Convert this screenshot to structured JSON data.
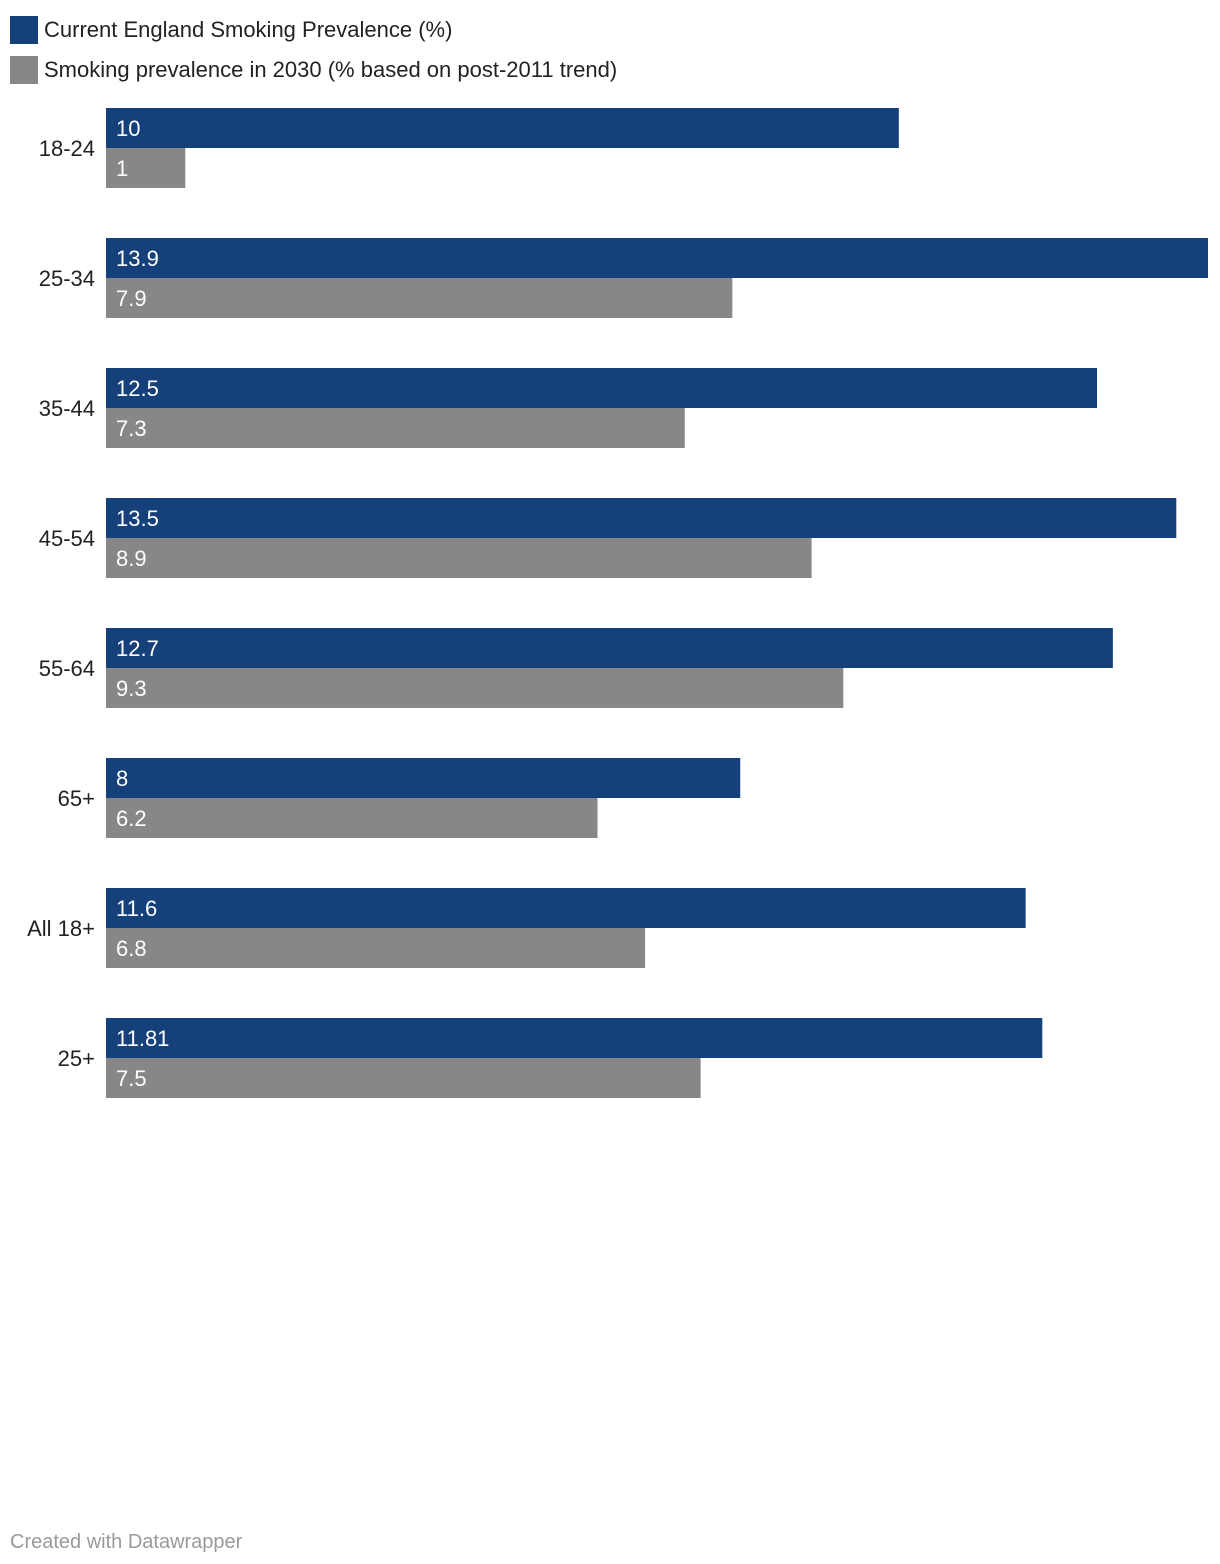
{
  "chart_data": {
    "type": "bar",
    "orientation": "horizontal",
    "categories": [
      "18-24",
      "25-34",
      "35-44",
      "45-54",
      "55-64",
      "65+",
      "All 18+",
      "25+"
    ],
    "series": [
      {
        "name": "Current England Smoking Prevalence (%)",
        "color": "#15407a",
        "values": [
          10,
          13.9,
          12.5,
          13.5,
          12.7,
          8,
          11.6,
          11.81
        ],
        "labels": [
          "10",
          "13.9",
          "12.5",
          "13.5",
          "12.7",
          "8",
          "11.6",
          "11.81"
        ]
      },
      {
        "name": "Smoking prevalence in 2030 (% based on post-2011 trend)",
        "color": "#878787",
        "values": [
          1,
          7.9,
          7.3,
          8.9,
          9.3,
          6.2,
          6.8,
          7.5
        ],
        "labels": [
          "1",
          "7.9",
          "7.3",
          "8.9",
          "9.3",
          "6.2",
          "6.8",
          "7.5"
        ]
      }
    ],
    "xlim": [
      0,
      13.9
    ],
    "grid": false,
    "legend": "top-left"
  },
  "footer": {
    "credit": "Created with Datawrapper"
  }
}
